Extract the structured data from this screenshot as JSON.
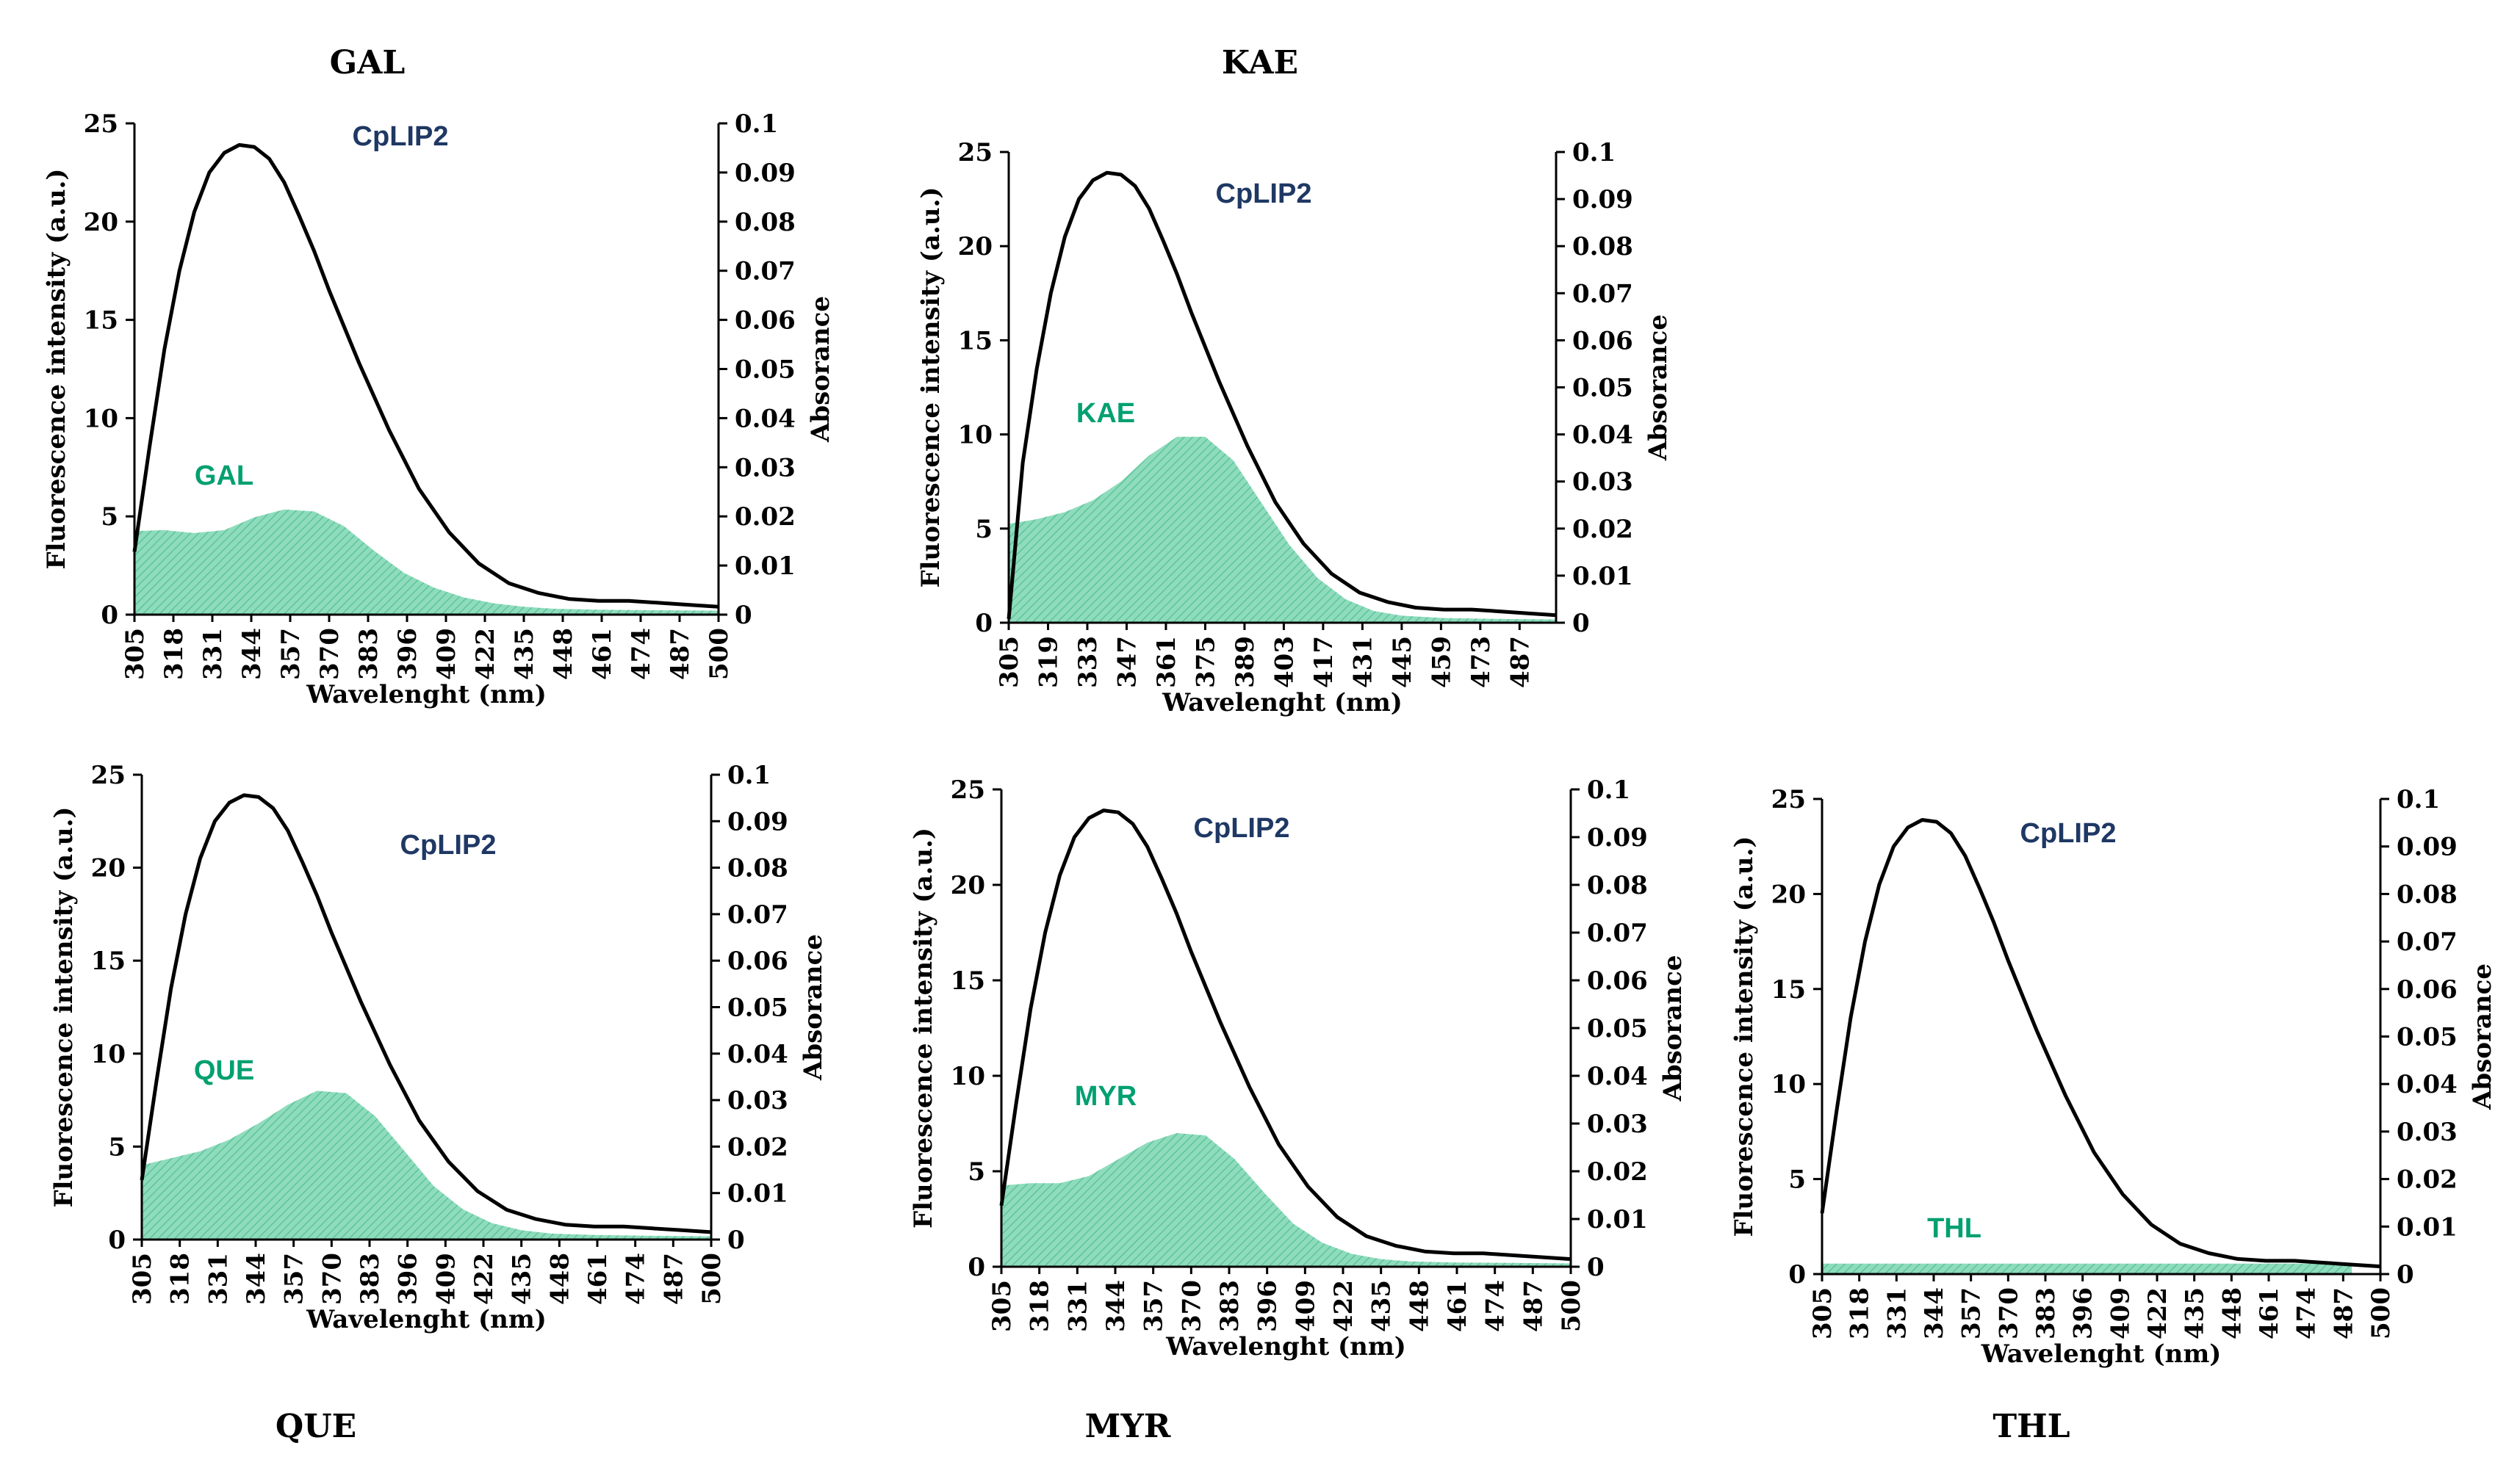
{
  "chart_data": [
    {
      "type": "area",
      "title": "GAL",
      "xlabel": "Wavelenght (nm)",
      "ylabel": "Fluorescence intensity (a.u.)",
      "y2label": "Absorance",
      "ylim": [
        0,
        25
      ],
      "y2lim": [
        0,
        0.1
      ],
      "yticks": [
        0,
        5,
        10,
        15,
        20,
        25
      ],
      "y2ticks": [
        0,
        0.01,
        0.02,
        0.03,
        0.04,
        0.05,
        0.06,
        0.07,
        0.08,
        0.09,
        0.1
      ],
      "xlim": [
        305,
        500
      ],
      "xticks": [
        305,
        318,
        331,
        344,
        357,
        370,
        383,
        396,
        409,
        422,
        435,
        448,
        461,
        474,
        487,
        500
      ],
      "series": [
        {
          "name": "CpLIP2",
          "kind": "line",
          "axis": "left",
          "color": "#000000",
          "label_color": "#1f3864",
          "x": [
            305,
            310,
            315,
            320,
            325,
            330,
            335,
            340,
            345,
            350,
            355,
            360,
            365,
            370,
            380,
            390,
            400,
            410,
            420,
            430,
            440,
            450,
            460,
            470,
            480,
            490,
            500
          ],
          "y": [
            3.2,
            8.5,
            13.5,
            17.5,
            20.5,
            22.5,
            23.5,
            23.9,
            23.8,
            23.2,
            22.0,
            20.3,
            18.5,
            16.5,
            12.8,
            9.4,
            6.4,
            4.2,
            2.6,
            1.6,
            1.1,
            0.8,
            0.7,
            0.7,
            0.6,
            0.5,
            0.4
          ]
        },
        {
          "name": "GAL",
          "kind": "area",
          "axis": "right",
          "color": "#7fd6b4",
          "label_color": "#00a070",
          "x": [
            305,
            315,
            325,
            335,
            345,
            355,
            365,
            375,
            385,
            395,
            405,
            415,
            425,
            435,
            445,
            460,
            480,
            500
          ],
          "y": [
            0.017,
            0.0172,
            0.0166,
            0.0172,
            0.0198,
            0.0214,
            0.021,
            0.018,
            0.013,
            0.0085,
            0.0055,
            0.0035,
            0.0023,
            0.0016,
            0.0012,
            0.001,
            0.0009,
            0.0008
          ]
        }
      ]
    },
    {
      "type": "area",
      "title": "KAE",
      "xlabel": "Wavelenght (nm)",
      "ylabel": "Fluorescence intensity (a.u.)",
      "y2label": "Absorance",
      "ylim": [
        0,
        25
      ],
      "y2lim": [
        0,
        0.1
      ],
      "yticks": [
        0,
        5,
        10,
        15,
        20,
        25
      ],
      "y2ticks": [
        0,
        0.01,
        0.02,
        0.03,
        0.04,
        0.05,
        0.06,
        0.07,
        0.08,
        0.09,
        0.1
      ],
      "xlim": [
        305,
        500
      ],
      "xticks": [
        305,
        319,
        333,
        347,
        361,
        375,
        389,
        403,
        417,
        431,
        445,
        459,
        473,
        487
      ],
      "series": [
        {
          "name": "CpLIP2",
          "kind": "line",
          "axis": "left",
          "color": "#000000",
          "label_color": "#1f3864",
          "x": [
            305,
            310,
            315,
            320,
            325,
            330,
            335,
            340,
            345,
            350,
            355,
            360,
            365,
            370,
            380,
            390,
            400,
            410,
            420,
            430,
            440,
            450,
            460,
            470,
            480,
            490,
            500
          ],
          "y": [
            0.2,
            8.5,
            13.5,
            17.5,
            20.5,
            22.5,
            23.5,
            23.9,
            23.8,
            23.2,
            22.0,
            20.3,
            18.5,
            16.5,
            12.8,
            9.4,
            6.4,
            4.2,
            2.6,
            1.6,
            1.1,
            0.8,
            0.7,
            0.7,
            0.6,
            0.5,
            0.4
          ]
        },
        {
          "name": "KAE",
          "kind": "area",
          "axis": "right",
          "color": "#7fd6b4",
          "label_color": "#00a070",
          "x": [
            305,
            315,
            325,
            335,
            345,
            355,
            365,
            375,
            385,
            395,
            405,
            415,
            425,
            435,
            445,
            460,
            480,
            500
          ],
          "y": [
            0.021,
            0.022,
            0.0235,
            0.026,
            0.03,
            0.0355,
            0.0395,
            0.0395,
            0.0345,
            0.0255,
            0.0165,
            0.0095,
            0.005,
            0.0025,
            0.0015,
            0.001,
            0.0008,
            0.0007
          ]
        }
      ]
    },
    {
      "type": "area",
      "title": "QUE",
      "xlabel": "Wavelenght (nm)",
      "ylabel": "Fluorescence intensity (a.u.)",
      "y2label": "Absorance",
      "ylim": [
        0,
        25
      ],
      "y2lim": [
        0,
        0.1
      ],
      "yticks": [
        0,
        5,
        10,
        15,
        20,
        25
      ],
      "y2ticks": [
        0,
        0.01,
        0.02,
        0.03,
        0.04,
        0.05,
        0.06,
        0.07,
        0.08,
        0.09,
        0.1
      ],
      "xlim": [
        305,
        500
      ],
      "xticks": [
        305,
        318,
        331,
        344,
        357,
        370,
        383,
        396,
        409,
        422,
        435,
        448,
        461,
        474,
        487,
        500
      ],
      "series": [
        {
          "name": "CpLIP2",
          "kind": "line",
          "axis": "left",
          "color": "#000000",
          "label_color": "#1f3864",
          "x": [
            305,
            310,
            315,
            320,
            325,
            330,
            335,
            340,
            345,
            350,
            355,
            360,
            365,
            370,
            380,
            390,
            400,
            410,
            420,
            430,
            440,
            450,
            460,
            470,
            480,
            490,
            500
          ],
          "y": [
            3.2,
            8.5,
            13.5,
            17.5,
            20.5,
            22.5,
            23.5,
            23.9,
            23.8,
            23.2,
            22.0,
            20.3,
            18.5,
            16.5,
            12.8,
            9.4,
            6.4,
            4.2,
            2.6,
            1.6,
            1.1,
            0.8,
            0.7,
            0.7,
            0.6,
            0.5,
            0.4
          ]
        },
        {
          "name": "QUE",
          "kind": "area",
          "axis": "right",
          "color": "#7fd6b4",
          "label_color": "#00a070",
          "x": [
            305,
            315,
            325,
            335,
            345,
            355,
            365,
            375,
            385,
            395,
            405,
            415,
            425,
            435,
            445,
            460,
            480,
            500
          ],
          "y": [
            0.016,
            0.0175,
            0.019,
            0.0215,
            0.025,
            0.029,
            0.032,
            0.0315,
            0.0265,
            0.019,
            0.0115,
            0.0065,
            0.0035,
            0.002,
            0.0013,
            0.001,
            0.0008,
            0.0007
          ]
        }
      ]
    },
    {
      "type": "area",
      "title": "MYR",
      "xlabel": "Wavelenght (nm)",
      "ylabel": "Fluorescence intensity (a.u.)",
      "y2label": "Absorance",
      "ylim": [
        0,
        25
      ],
      "y2lim": [
        0,
        0.1
      ],
      "yticks": [
        0,
        5,
        10,
        15,
        20,
        25
      ],
      "y2ticks": [
        0,
        0.01,
        0.02,
        0.03,
        0.04,
        0.05,
        0.06,
        0.07,
        0.08,
        0.09,
        0.1
      ],
      "xlim": [
        305,
        500
      ],
      "xticks": [
        305,
        318,
        331,
        344,
        357,
        370,
        383,
        396,
        409,
        422,
        435,
        448,
        461,
        474,
        487,
        500
      ],
      "series": [
        {
          "name": "CpLIP2",
          "kind": "line",
          "axis": "left",
          "color": "#000000",
          "label_color": "#1f3864",
          "x": [
            305,
            310,
            315,
            320,
            325,
            330,
            335,
            340,
            345,
            350,
            355,
            360,
            365,
            370,
            380,
            390,
            400,
            410,
            420,
            430,
            440,
            450,
            460,
            470,
            480,
            490,
            500
          ],
          "y": [
            3.2,
            8.5,
            13.5,
            17.5,
            20.5,
            22.5,
            23.5,
            23.9,
            23.8,
            23.2,
            22.0,
            20.3,
            18.5,
            16.5,
            12.8,
            9.4,
            6.4,
            4.2,
            2.6,
            1.6,
            1.1,
            0.8,
            0.7,
            0.7,
            0.6,
            0.5,
            0.4
          ]
        },
        {
          "name": "MYR",
          "kind": "area",
          "axis": "right",
          "color": "#7fd6b4",
          "label_color": "#00a070",
          "x": [
            305,
            315,
            325,
            335,
            345,
            355,
            365,
            375,
            385,
            395,
            405,
            415,
            425,
            435,
            445,
            460,
            480,
            500
          ],
          "y": [
            0.017,
            0.0175,
            0.0175,
            0.019,
            0.0225,
            0.026,
            0.028,
            0.0275,
            0.0225,
            0.0155,
            0.009,
            0.005,
            0.0027,
            0.0016,
            0.0011,
            0.0009,
            0.0008,
            0.0007
          ]
        }
      ]
    },
    {
      "type": "area",
      "title": "THL",
      "xlabel": "Wavelenght (nm)",
      "ylabel": "Fluorescence intensity (a.u.)",
      "y2label": "Absorance",
      "ylim": [
        0,
        25
      ],
      "y2lim": [
        0,
        0.1
      ],
      "yticks": [
        0,
        5,
        10,
        15,
        20,
        25
      ],
      "y2ticks": [
        0,
        0.01,
        0.02,
        0.03,
        0.04,
        0.05,
        0.06,
        0.07,
        0.08,
        0.09,
        0.1
      ],
      "xlim": [
        305,
        500
      ],
      "xticks": [
        305,
        318,
        331,
        344,
        357,
        370,
        383,
        396,
        409,
        422,
        435,
        448,
        461,
        474,
        487,
        500
      ],
      "series": [
        {
          "name": "CpLIP2",
          "kind": "line",
          "axis": "left",
          "color": "#000000",
          "label_color": "#1f3864",
          "x": [
            305,
            310,
            315,
            320,
            325,
            330,
            335,
            340,
            345,
            350,
            355,
            360,
            365,
            370,
            380,
            390,
            400,
            410,
            420,
            430,
            440,
            450,
            460,
            470,
            480,
            490,
            500
          ],
          "y": [
            3.2,
            8.5,
            13.5,
            17.5,
            20.5,
            22.5,
            23.5,
            23.9,
            23.8,
            23.2,
            22.0,
            20.3,
            18.5,
            16.5,
            12.8,
            9.4,
            6.4,
            4.2,
            2.6,
            1.6,
            1.1,
            0.8,
            0.7,
            0.7,
            0.6,
            0.5,
            0.4
          ]
        },
        {
          "name": "THL",
          "kind": "area",
          "axis": "right",
          "color": "#7fd6b4",
          "label_color": "#00a070",
          "x": [
            305,
            490
          ],
          "y": [
            0.0022,
            0.0022
          ]
        }
      ]
    }
  ]
}
